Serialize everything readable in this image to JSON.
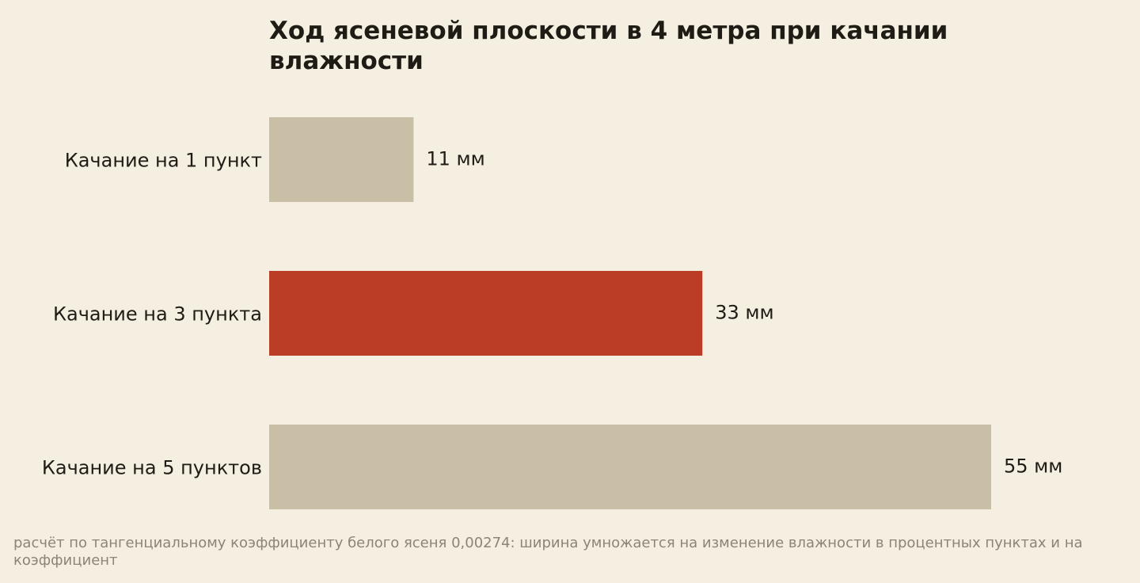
{
  "colors": {
    "background": "#f5efe2",
    "bar_default": "#c9bfa7",
    "bar_highlight": "#bb3d26",
    "text": "#1f1c15",
    "footnote": "#8b8577"
  },
  "chart_data": {
    "type": "bar",
    "orientation": "horizontal",
    "title": "Ход ясеневой плоскости в 4 метра при качании влажности",
    "categories": [
      "Качание на 1 пункт",
      "Качание на 3 пункта",
      "Качание на 5 пунктов"
    ],
    "values": [
      11,
      33,
      55
    ],
    "value_labels": [
      "11 мм",
      "33 мм",
      "55 мм"
    ],
    "highlight_index": 1,
    "xlim": [
      0,
      60
    ],
    "grid": false,
    "legend": "none",
    "footnote": "расчёт по тангенциальному коэффициенту белого ясеня 0,00274: ширина умножается на изменение влажности в процентных пунктах и на коэффициент"
  }
}
